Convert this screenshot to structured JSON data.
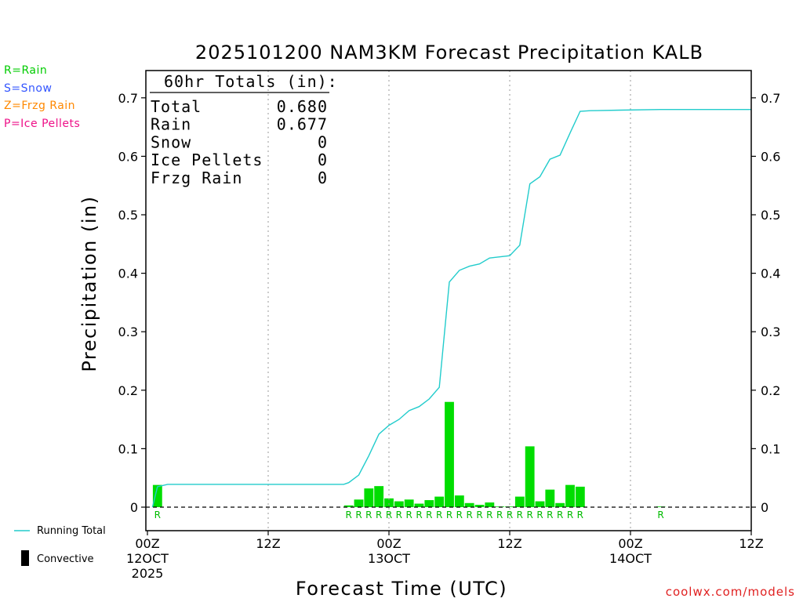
{
  "precip_types": [
    {
      "label": "R=Rain",
      "color": "#00cc00"
    },
    {
      "label": "S=Snow",
      "color": "#3355ff"
    },
    {
      "label": "Z=Frzg Rain",
      "color": "#ff8800"
    },
    {
      "label": "P=Ice Pellets",
      "color": "#ee1188"
    }
  ],
  "legend": {
    "running_total_label": "Running Total",
    "convective_label": "Convective"
  },
  "credit": "coolwx.com/models",
  "totals": {
    "header": "60hr Totals (in):",
    "rows": [
      {
        "label": "Total",
        "value": "0.680"
      },
      {
        "label": "Rain",
        "value": "0.677"
      },
      {
        "label": "Snow",
        "value": "0"
      },
      {
        "label": "Ice Pellets",
        "value": "0"
      },
      {
        "label": "Frzg Rain",
        "value": "0"
      }
    ]
  },
  "chart_data": {
    "type": "bar",
    "title": "2025101200 NAM3KM Forecast Precipitation KALB",
    "xlabel": "Forecast Time (UTC)",
    "ylabel": "Precipitation (in)",
    "xlim_hours": [
      0,
      60
    ],
    "ylim": [
      -0.04,
      0.75
    ],
    "yticks": [
      0,
      0.1,
      0.2,
      0.3,
      0.4,
      0.5,
      0.6,
      0.7
    ],
    "ytick_labels": [
      "0",
      "0.1",
      "0.2",
      "0.3",
      "0.4",
      "0.5",
      "0.6",
      "0.7"
    ],
    "xticks": [
      {
        "hour": 0,
        "lines": [
          "00Z",
          "12OCT",
          "2025"
        ]
      },
      {
        "hour": 12,
        "lines": [
          "12Z"
        ]
      },
      {
        "hour": 24,
        "lines": [
          "00Z",
          "13OCT"
        ]
      },
      {
        "hour": 36,
        "lines": [
          "12Z"
        ]
      },
      {
        "hour": 48,
        "lines": [
          "00Z",
          "14OCT"
        ]
      },
      {
        "hour": 60,
        "lines": [
          "12Z"
        ]
      }
    ],
    "grid_x": "dotted at 12Z/00Z",
    "bar_color": "#00dd00",
    "line_color": "#22cccc",
    "hourly_precip": [
      {
        "hour": 1,
        "value": 0.038,
        "type": "R"
      },
      {
        "hour": 20,
        "value": 0.003,
        "type": "R"
      },
      {
        "hour": 21,
        "value": 0.013,
        "type": "R"
      },
      {
        "hour": 22,
        "value": 0.032,
        "type": "R"
      },
      {
        "hour": 23,
        "value": 0.036,
        "type": "R"
      },
      {
        "hour": 24,
        "value": 0.015,
        "type": "R"
      },
      {
        "hour": 25,
        "value": 0.01,
        "type": "R"
      },
      {
        "hour": 26,
        "value": 0.013,
        "type": "R"
      },
      {
        "hour": 27,
        "value": 0.006,
        "type": "R"
      },
      {
        "hour": 28,
        "value": 0.012,
        "type": "R"
      },
      {
        "hour": 29,
        "value": 0.018,
        "type": "R"
      },
      {
        "hour": 30,
        "value": 0.18,
        "type": "R"
      },
      {
        "hour": 31,
        "value": 0.02,
        "type": "R"
      },
      {
        "hour": 32,
        "value": 0.007,
        "type": "R"
      },
      {
        "hour": 33,
        "value": 0.004,
        "type": "R"
      },
      {
        "hour": 34,
        "value": 0.008,
        "type": "R"
      },
      {
        "hour": 35,
        "value": 0.001,
        "type": "R"
      },
      {
        "hour": 36,
        "value": 0.001,
        "type": "R"
      },
      {
        "hour": 37,
        "value": 0.018,
        "type": "R"
      },
      {
        "hour": 38,
        "value": 0.104,
        "type": "R"
      },
      {
        "hour": 39,
        "value": 0.01,
        "type": "R"
      },
      {
        "hour": 40,
        "value": 0.03,
        "type": "R"
      },
      {
        "hour": 41,
        "value": 0.007,
        "type": "R"
      },
      {
        "hour": 42,
        "value": 0.038,
        "type": "R"
      },
      {
        "hour": 43,
        "value": 0.035,
        "type": "R"
      },
      {
        "hour": 51,
        "value": 0.001,
        "type": "R"
      }
    ],
    "running_total": [
      [
        0.5,
        0.0
      ],
      [
        1.0,
        0.035
      ],
      [
        2.0,
        0.039
      ],
      [
        10,
        0.039
      ],
      [
        15,
        0.039
      ],
      [
        19.5,
        0.039
      ],
      [
        20,
        0.042
      ],
      [
        21,
        0.055
      ],
      [
        22,
        0.088
      ],
      [
        23,
        0.125
      ],
      [
        24,
        0.14
      ],
      [
        25,
        0.15
      ],
      [
        26,
        0.165
      ],
      [
        27,
        0.172
      ],
      [
        28,
        0.185
      ],
      [
        29,
        0.205
      ],
      [
        30,
        0.385
      ],
      [
        31,
        0.405
      ],
      [
        32,
        0.412
      ],
      [
        33,
        0.416
      ],
      [
        34,
        0.426
      ],
      [
        35,
        0.428
      ],
      [
        36,
        0.43
      ],
      [
        37,
        0.448
      ],
      [
        38,
        0.553
      ],
      [
        39,
        0.565
      ],
      [
        40,
        0.595
      ],
      [
        41,
        0.602
      ],
      [
        42,
        0.64
      ],
      [
        43,
        0.677
      ],
      [
        44,
        0.678
      ],
      [
        47,
        0.679
      ],
      [
        51,
        0.68
      ],
      [
        60,
        0.68
      ]
    ]
  }
}
